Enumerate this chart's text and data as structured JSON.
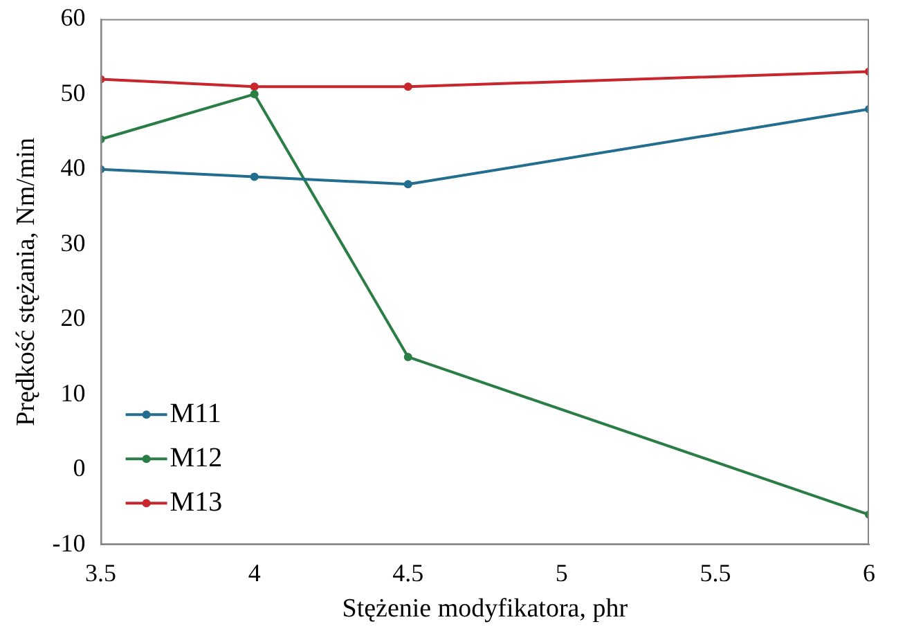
{
  "chart_data": {
    "type": "line",
    "xlabel": "Stężenie modyfikatora, phr",
    "ylabel": "Prędkość stężania, Nm/min",
    "x": [
      3.5,
      4,
      4.5,
      6
    ],
    "series": [
      {
        "name": "M11",
        "color": "#236e8e",
        "values": [
          40,
          39,
          38,
          48
        ]
      },
      {
        "name": "M12",
        "color": "#2a7d45",
        "values": [
          44,
          50,
          15,
          -6
        ]
      },
      {
        "name": "M13",
        "color": "#c8262c",
        "values": [
          52,
          51,
          51,
          53
        ]
      }
    ],
    "xlim": [
      3.5,
      6
    ],
    "xticks": [
      3.5,
      4,
      4.5,
      5,
      5.5,
      6
    ],
    "ylim": [
      -10,
      60
    ],
    "yticks": [
      -10,
      0,
      10,
      20,
      30,
      40,
      50,
      60
    ],
    "grid": false,
    "legend": "bottom left",
    "marker": "circle",
    "line_style": "solid"
  }
}
